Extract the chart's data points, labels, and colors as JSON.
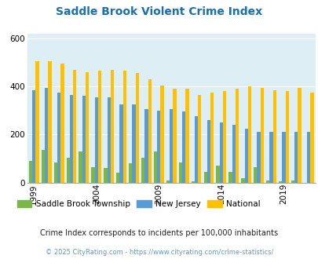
{
  "title": "Saddle Brook Violent Crime Index",
  "years": [
    1999,
    2000,
    2001,
    2002,
    2003,
    2004,
    2005,
    2006,
    2007,
    2008,
    2009,
    2010,
    2011,
    2012,
    2013,
    2014,
    2015,
    2016,
    2017,
    2018,
    2019,
    2020,
    2021
  ],
  "saddle_brook": [
    90,
    135,
    85,
    105,
    130,
    65,
    60,
    40,
    80,
    105,
    130,
    10,
    85,
    5,
    45,
    70,
    45,
    20,
    65,
    10,
    5,
    10,
    0
  ],
  "new_jersey": [
    385,
    395,
    375,
    365,
    360,
    355,
    355,
    325,
    325,
    305,
    300,
    305,
    295,
    275,
    260,
    250,
    240,
    225,
    210,
    210,
    210,
    210,
    210
  ],
  "national": [
    505,
    505,
    495,
    470,
    460,
    465,
    470,
    465,
    455,
    430,
    405,
    390,
    390,
    365,
    375,
    380,
    390,
    400,
    395,
    385,
    380,
    395,
    375
  ],
  "ylim": [
    0,
    620
  ],
  "yticks": [
    0,
    200,
    400,
    600
  ],
  "background_color": "#deeef5",
  "bar_color_saddle": "#7ab648",
  "bar_color_nj": "#5b9bd5",
  "bar_color_national": "#ffc000",
  "legend_labels": [
    "Saddle Brook Township",
    "New Jersey",
    "National"
  ],
  "tick_years": [
    1999,
    2004,
    2009,
    2014,
    2019
  ],
  "footer1": "Crime Index corresponds to incidents per 100,000 inhabitants",
  "footer2": "© 2025 CityRating.com - https://www.cityrating.com/crime-statistics/",
  "title_color": "#1a6fad",
  "footer1_color": "#222222",
  "footer2_color": "#5b9bd5"
}
